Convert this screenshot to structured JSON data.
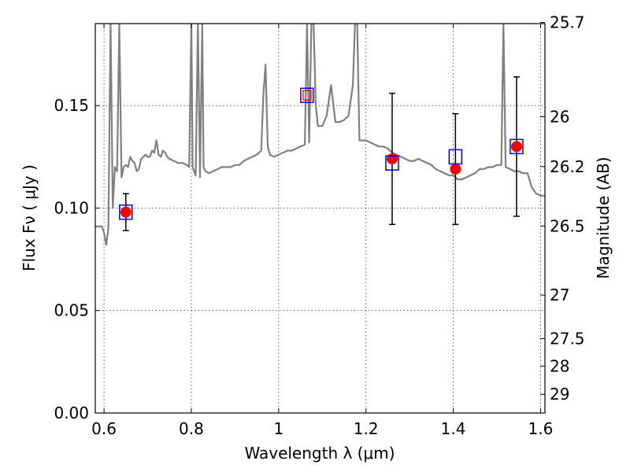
{
  "chart_data": {
    "type": "line",
    "xlabel": "Wavelength  λ (μm)",
    "ylabel": "Flux  Fν  ( μJy )",
    "y2label": "Magnitude (AB)",
    "xlim": [
      0.58,
      1.61
    ],
    "ylim": [
      0.0,
      0.19
    ],
    "x_ticks": [
      0.6,
      0.8,
      1.0,
      1.2,
      1.4,
      1.6
    ],
    "x_tick_labels": [
      "0.6",
      "0.8",
      "1",
      "1.2",
      "1.4",
      "1.6"
    ],
    "y_ticks": [
      0.0,
      0.05,
      0.1,
      0.15
    ],
    "y_tick_labels": [
      "0.00",
      "0.05",
      "0.10",
      "0.15"
    ],
    "y2_ticks": [
      25.7,
      26.0,
      26.2,
      26.5,
      27.0,
      27.5,
      28.0,
      29.0
    ],
    "y2_tick_labels": [
      "25.7",
      "26",
      "26.2",
      "26.5",
      "27",
      "27.5",
      "28",
      "29"
    ],
    "grid": true,
    "colors": {
      "spectrum": "#808080",
      "observed": "#ff0000",
      "model_box": "#0000ff",
      "errorbar": "#000000"
    },
    "series": [
      {
        "kind": "spectrum",
        "x": [
          0.58,
          0.595,
          0.6,
          0.605,
          0.61,
          0.615,
          0.62,
          0.625,
          0.63,
          0.635,
          0.64,
          0.645,
          0.65,
          0.655,
          0.66,
          0.665,
          0.67,
          0.675,
          0.68,
          0.685,
          0.69,
          0.695,
          0.7,
          0.705,
          0.71,
          0.715,
          0.72,
          0.725,
          0.73,
          0.735,
          0.74,
          0.745,
          0.75,
          0.76,
          0.77,
          0.78,
          0.79,
          0.795,
          0.8,
          0.803,
          0.806,
          0.81,
          0.815,
          0.82,
          0.825,
          0.828,
          0.832,
          0.84,
          0.85,
          0.86,
          0.87,
          0.88,
          0.89,
          0.9,
          0.91,
          0.92,
          0.93,
          0.94,
          0.95,
          0.96,
          0.965,
          0.97,
          0.975,
          0.98,
          0.99,
          1.0,
          1.01,
          1.02,
          1.03,
          1.04,
          1.05,
          1.06,
          1.065,
          1.07,
          1.075,
          1.08,
          1.085,
          1.09,
          1.1,
          1.11,
          1.12,
          1.13,
          1.14,
          1.15,
          1.16,
          1.17,
          1.175,
          1.18,
          1.185,
          1.19,
          1.2,
          1.21,
          1.22,
          1.23,
          1.24,
          1.25,
          1.26,
          1.27,
          1.28,
          1.29,
          1.3,
          1.31,
          1.32,
          1.33,
          1.34,
          1.35,
          1.36,
          1.37,
          1.38,
          1.39,
          1.4,
          1.41,
          1.42,
          1.43,
          1.44,
          1.45,
          1.46,
          1.47,
          1.48,
          1.49,
          1.5,
          1.51,
          1.515,
          1.52,
          1.53,
          1.54,
          1.55,
          1.56,
          1.57,
          1.58,
          1.59,
          1.6,
          1.61
        ],
        "y": [
          0.091,
          0.091,
          0.088,
          0.082,
          0.09,
          0.19,
          0.1,
          0.12,
          0.118,
          0.19,
          0.115,
          0.12,
          0.121,
          0.12,
          0.125,
          0.123,
          0.122,
          0.118,
          0.119,
          0.124,
          0.125,
          0.126,
          0.125,
          0.125,
          0.128,
          0.127,
          0.133,
          0.126,
          0.125,
          0.128,
          0.127,
          0.125,
          0.124,
          0.123,
          0.122,
          0.122,
          0.121,
          0.12,
          0.19,
          0.12,
          0.118,
          0.116,
          0.19,
          0.115,
          0.19,
          0.12,
          0.118,
          0.117,
          0.118,
          0.119,
          0.12,
          0.12,
          0.12,
          0.121,
          0.121,
          0.123,
          0.124,
          0.125,
          0.126,
          0.128,
          0.155,
          0.17,
          0.13,
          0.126,
          0.125,
          0.126,
          0.127,
          0.128,
          0.128,
          0.129,
          0.13,
          0.131,
          0.19,
          0.132,
          0.19,
          0.19,
          0.15,
          0.14,
          0.14,
          0.145,
          0.16,
          0.142,
          0.142,
          0.143,
          0.145,
          0.16,
          0.19,
          0.19,
          0.133,
          0.133,
          0.133,
          0.132,
          0.131,
          0.13,
          0.13,
          0.129,
          0.127,
          0.126,
          0.125,
          0.124,
          0.123,
          0.123,
          0.124,
          0.123,
          0.122,
          0.121,
          0.119,
          0.118,
          0.117,
          0.116,
          0.116,
          0.114,
          0.114,
          0.115,
          0.116,
          0.117,
          0.119,
          0.119,
          0.12,
          0.12,
          0.121,
          0.121,
          0.19,
          0.12,
          0.119,
          0.118,
          0.118,
          0.117,
          0.117,
          0.11,
          0.107,
          0.106,
          0.106
        ]
      },
      {
        "kind": "observed",
        "x": [
          0.65,
          1.26,
          1.405,
          1.545
        ],
        "y": [
          0.098,
          0.124,
          0.119,
          0.13
        ],
        "yerr": [
          0.009,
          0.032,
          0.027,
          0.034
        ]
      },
      {
        "kind": "model_boxes",
        "x": [
          0.65,
          1.065,
          1.26,
          1.405,
          1.545
        ],
        "y": [
          0.098,
          0.155,
          0.122,
          0.125,
          0.13
        ]
      },
      {
        "kind": "model_box_inner",
        "x": [
          1.065
        ],
        "y": [
          0.155
        ]
      }
    ]
  }
}
